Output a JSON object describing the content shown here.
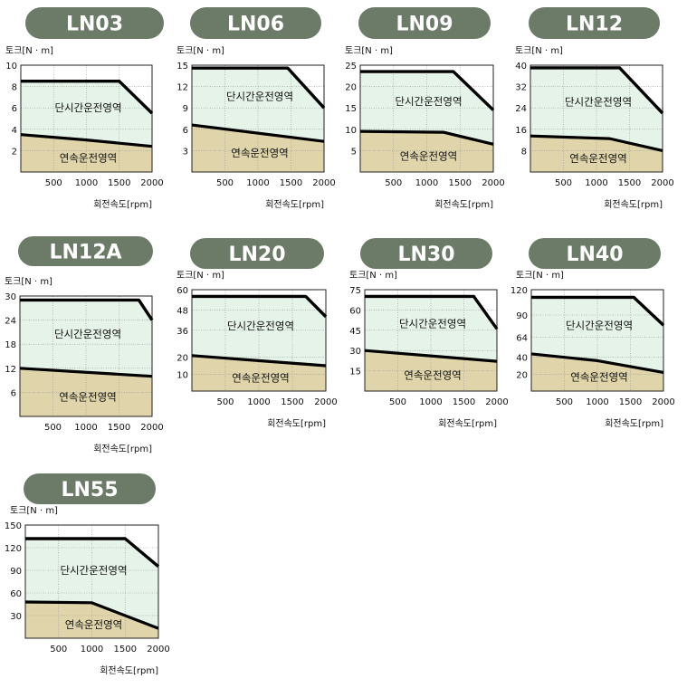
{
  "common": {
    "torque_unit_label": "토크[N · m]",
    "speed_unit_label": "회전속도[rpm]",
    "short_region_label": "단시간운전영역",
    "cont_region_label": "연속운전영역"
  },
  "colors": {
    "title_pill": "#6c7a68",
    "title_text": "#ffffff",
    "short_region_fill": "#e5f3e8",
    "cont_region_fill": "#e0d4aa",
    "curve": "#000000",
    "grid": "#9a9a9a",
    "axis_text": "#111111"
  },
  "chart_data": [
    {
      "type": "area",
      "title": "LN03",
      "ylim": [
        0,
        10
      ],
      "xlim": [
        0,
        2000
      ],
      "yticks": [
        2,
        4,
        6,
        8,
        10
      ],
      "xticks": [
        500,
        1000,
        1500,
        2000
      ],
      "series": [
        {
          "name": "단시간운전영역",
          "x": [
            0,
            1500,
            2000
          ],
          "y": [
            8.5,
            8.5,
            5.5
          ]
        },
        {
          "name": "연속운전영역",
          "x": [
            0,
            1000,
            2000
          ],
          "y": [
            3.5,
            3.0,
            2.4
          ]
        }
      ]
    },
    {
      "type": "area",
      "title": "LN06",
      "ylim": [
        0,
        15
      ],
      "xlim": [
        0,
        2000
      ],
      "yticks": [
        3,
        6,
        9,
        12,
        15
      ],
      "xticks": [
        500,
        1000,
        1500,
        2000
      ],
      "series": [
        {
          "name": "단시간운전영역",
          "x": [
            0,
            1450,
            2000
          ],
          "y": [
            14.6,
            14.6,
            9.0
          ]
        },
        {
          "name": "연속운전영역",
          "x": [
            0,
            2000
          ],
          "y": [
            6.6,
            4.3
          ]
        }
      ]
    },
    {
      "type": "area",
      "title": "LN09",
      "ylim": [
        0,
        25
      ],
      "xlim": [
        0,
        2000
      ],
      "yticks": [
        5,
        10,
        15,
        20,
        25
      ],
      "xticks": [
        500,
        1000,
        1500,
        2000
      ],
      "series": [
        {
          "name": "단시간운전영역",
          "x": [
            0,
            1400,
            2000
          ],
          "y": [
            23.5,
            23.5,
            14.5
          ]
        },
        {
          "name": "연속운전영역",
          "x": [
            0,
            1250,
            2000
          ],
          "y": [
            9.5,
            9.3,
            6.5
          ]
        }
      ]
    },
    {
      "type": "area",
      "title": "LN12",
      "ylim": [
        0,
        40
      ],
      "xlim": [
        0,
        2000
      ],
      "yticks": [
        8,
        16,
        24,
        32,
        40
      ],
      "xticks": [
        500,
        1000,
        1500,
        2000
      ],
      "series": [
        {
          "name": "단시간운전영역",
          "x": [
            0,
            1350,
            2000
          ],
          "y": [
            39,
            39,
            22
          ]
        },
        {
          "name": "연속운전영역",
          "x": [
            0,
            1200,
            2000
          ],
          "y": [
            13.5,
            12.5,
            8
          ]
        }
      ]
    },
    {
      "type": "area",
      "title": "LN12A",
      "ylim": [
        0,
        30
      ],
      "xlim": [
        0,
        2000
      ],
      "yticks": [
        6,
        12,
        18,
        24,
        30
      ],
      "xticks": [
        500,
        1000,
        1500,
        2000
      ],
      "series": [
        {
          "name": "단시간운전영역",
          "x": [
            0,
            1800,
            2000
          ],
          "y": [
            29,
            29,
            24
          ]
        },
        {
          "name": "연속운전영역",
          "x": [
            0,
            2000
          ],
          "y": [
            12,
            10
          ]
        }
      ]
    },
    {
      "type": "area",
      "title": "LN20",
      "ylim": [
        0,
        60
      ],
      "xlim": [
        0,
        2000
      ],
      "yticks": [
        10,
        20,
        36,
        48,
        60
      ],
      "xticks": [
        500,
        1000,
        1500,
        2000
      ],
      "series": [
        {
          "name": "단시간운전영역",
          "x": [
            0,
            1700,
            2000
          ],
          "y": [
            56,
            56,
            44
          ]
        },
        {
          "name": "연속운전영역",
          "x": [
            0,
            2000
          ],
          "y": [
            21,
            15
          ]
        }
      ]
    },
    {
      "type": "area",
      "title": "LN30",
      "ylim": [
        0,
        75
      ],
      "xlim": [
        0,
        2000
      ],
      "yticks": [
        15,
        30,
        45,
        60,
        75
      ],
      "xticks": [
        500,
        1000,
        1500,
        2000
      ],
      "series": [
        {
          "name": "단시간운전영역",
          "x": [
            0,
            1650,
            2000
          ],
          "y": [
            70,
            70,
            46
          ]
        },
        {
          "name": "연속운전영역",
          "x": [
            0,
            2000
          ],
          "y": [
            30,
            22
          ]
        }
      ]
    },
    {
      "type": "area",
      "title": "LN40",
      "ylim": [
        0,
        120
      ],
      "xlim": [
        0,
        2000
      ],
      "yticks": [
        20,
        40,
        64,
        90,
        120
      ],
      "xticks": [
        500,
        1000,
        1500,
        2000
      ],
      "series": [
        {
          "name": "단시간운전영역",
          "x": [
            0,
            1550,
            2000
          ],
          "y": [
            111,
            111,
            78
          ]
        },
        {
          "name": "연속운전영역",
          "x": [
            0,
            1000,
            2000
          ],
          "y": [
            44,
            36,
            22
          ]
        }
      ]
    },
    {
      "type": "area",
      "title": "LN55",
      "ylim": [
        0,
        150
      ],
      "xlim": [
        0,
        2000
      ],
      "yticks": [
        30,
        60,
        90,
        120,
        150
      ],
      "xticks": [
        500,
        1000,
        1500,
        2000
      ],
      "series": [
        {
          "name": "단시간운전영역",
          "x": [
            0,
            1500,
            2000
          ],
          "y": [
            132,
            132,
            95
          ]
        },
        {
          "name": "연속운전영역",
          "x": [
            0,
            1000,
            2000
          ],
          "y": [
            48,
            47,
            13
          ]
        }
      ]
    }
  ]
}
